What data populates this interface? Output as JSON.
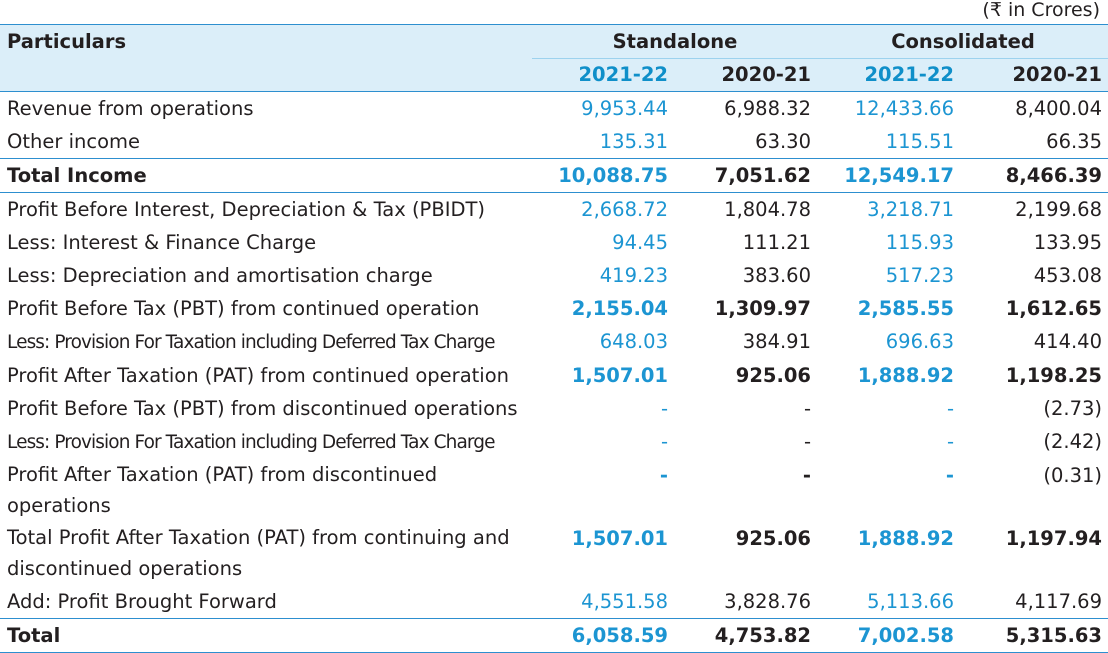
{
  "unit_note": "(₹ in Crores)",
  "header": {
    "particulars": "Particulars",
    "standalone": "Standalone",
    "consolidated": "Consolidated",
    "years": [
      "2021-22",
      "2020-21",
      "2021-22",
      "2020-21"
    ]
  },
  "rows": [
    {
      "label": "Revenue from operations",
      "values": [
        "9,953.44",
        "6,988.32",
        "12,433.66",
        "8,400.04"
      ]
    },
    {
      "label": "Other income",
      "values": [
        "135.31",
        "63.30",
        "115.51",
        "66.35"
      ]
    },
    {
      "label": "Total Income",
      "values": [
        "10,088.75",
        "7,051.62",
        "12,549.17",
        "8,466.39"
      ]
    },
    {
      "label": "Profit Before Interest, Depreciation & Tax (PBIDT)",
      "values": [
        "2,668.72",
        "1,804.78",
        "3,218.71",
        "2,199.68"
      ]
    },
    {
      "label": "Less: Interest & Finance Charge",
      "values": [
        "94.45",
        "111.21",
        "115.93",
        "133.95"
      ]
    },
    {
      "label": "Less: Depreciation and amortisation charge",
      "values": [
        "419.23",
        "383.60",
        "517.23",
        "453.08"
      ]
    },
    {
      "label": "Profit Before Tax (PBT) from continued operation",
      "values": [
        "2,155.04",
        "1,309.97",
        "2,585.55",
        "1,612.65"
      ]
    },
    {
      "label": "Less: Provision For Taxation including Deferred Tax Charge",
      "values": [
        "648.03",
        "384.91",
        "696.63",
        "414.40"
      ]
    },
    {
      "label": "Profit After Taxation (PAT) from continued operation",
      "values": [
        "1,507.01",
        "925.06",
        "1,888.92",
        "1,198.25"
      ]
    },
    {
      "label": "Profit Before Tax (PBT) from discontinued operations",
      "values": [
        "-",
        "-",
        "-",
        "(2.73)"
      ]
    },
    {
      "label": "Less: Provision For Taxation including Deferred Tax Charge",
      "values": [
        "-",
        "-",
        "-",
        "(2.42)"
      ]
    },
    {
      "label": "Profit After Taxation (PAT) from discontinued operations",
      "values": [
        "-",
        "-",
        "-",
        "(0.31)"
      ]
    },
    {
      "label": "Total Profit After Taxation (PAT) from continuing and discontinued operations",
      "values": [
        "1,507.01",
        "925.06",
        "1,888.92",
        "1,197.94"
      ]
    },
    {
      "label": "Add: Profit Brought Forward",
      "values": [
        "4,551.58",
        "3,828.76",
        "5,113.66",
        "4,117.69"
      ]
    },
    {
      "label": "Total",
      "values": [
        "6,058.59",
        "4,753.82",
        "7,002.58",
        "5,315.63"
      ]
    }
  ]
}
